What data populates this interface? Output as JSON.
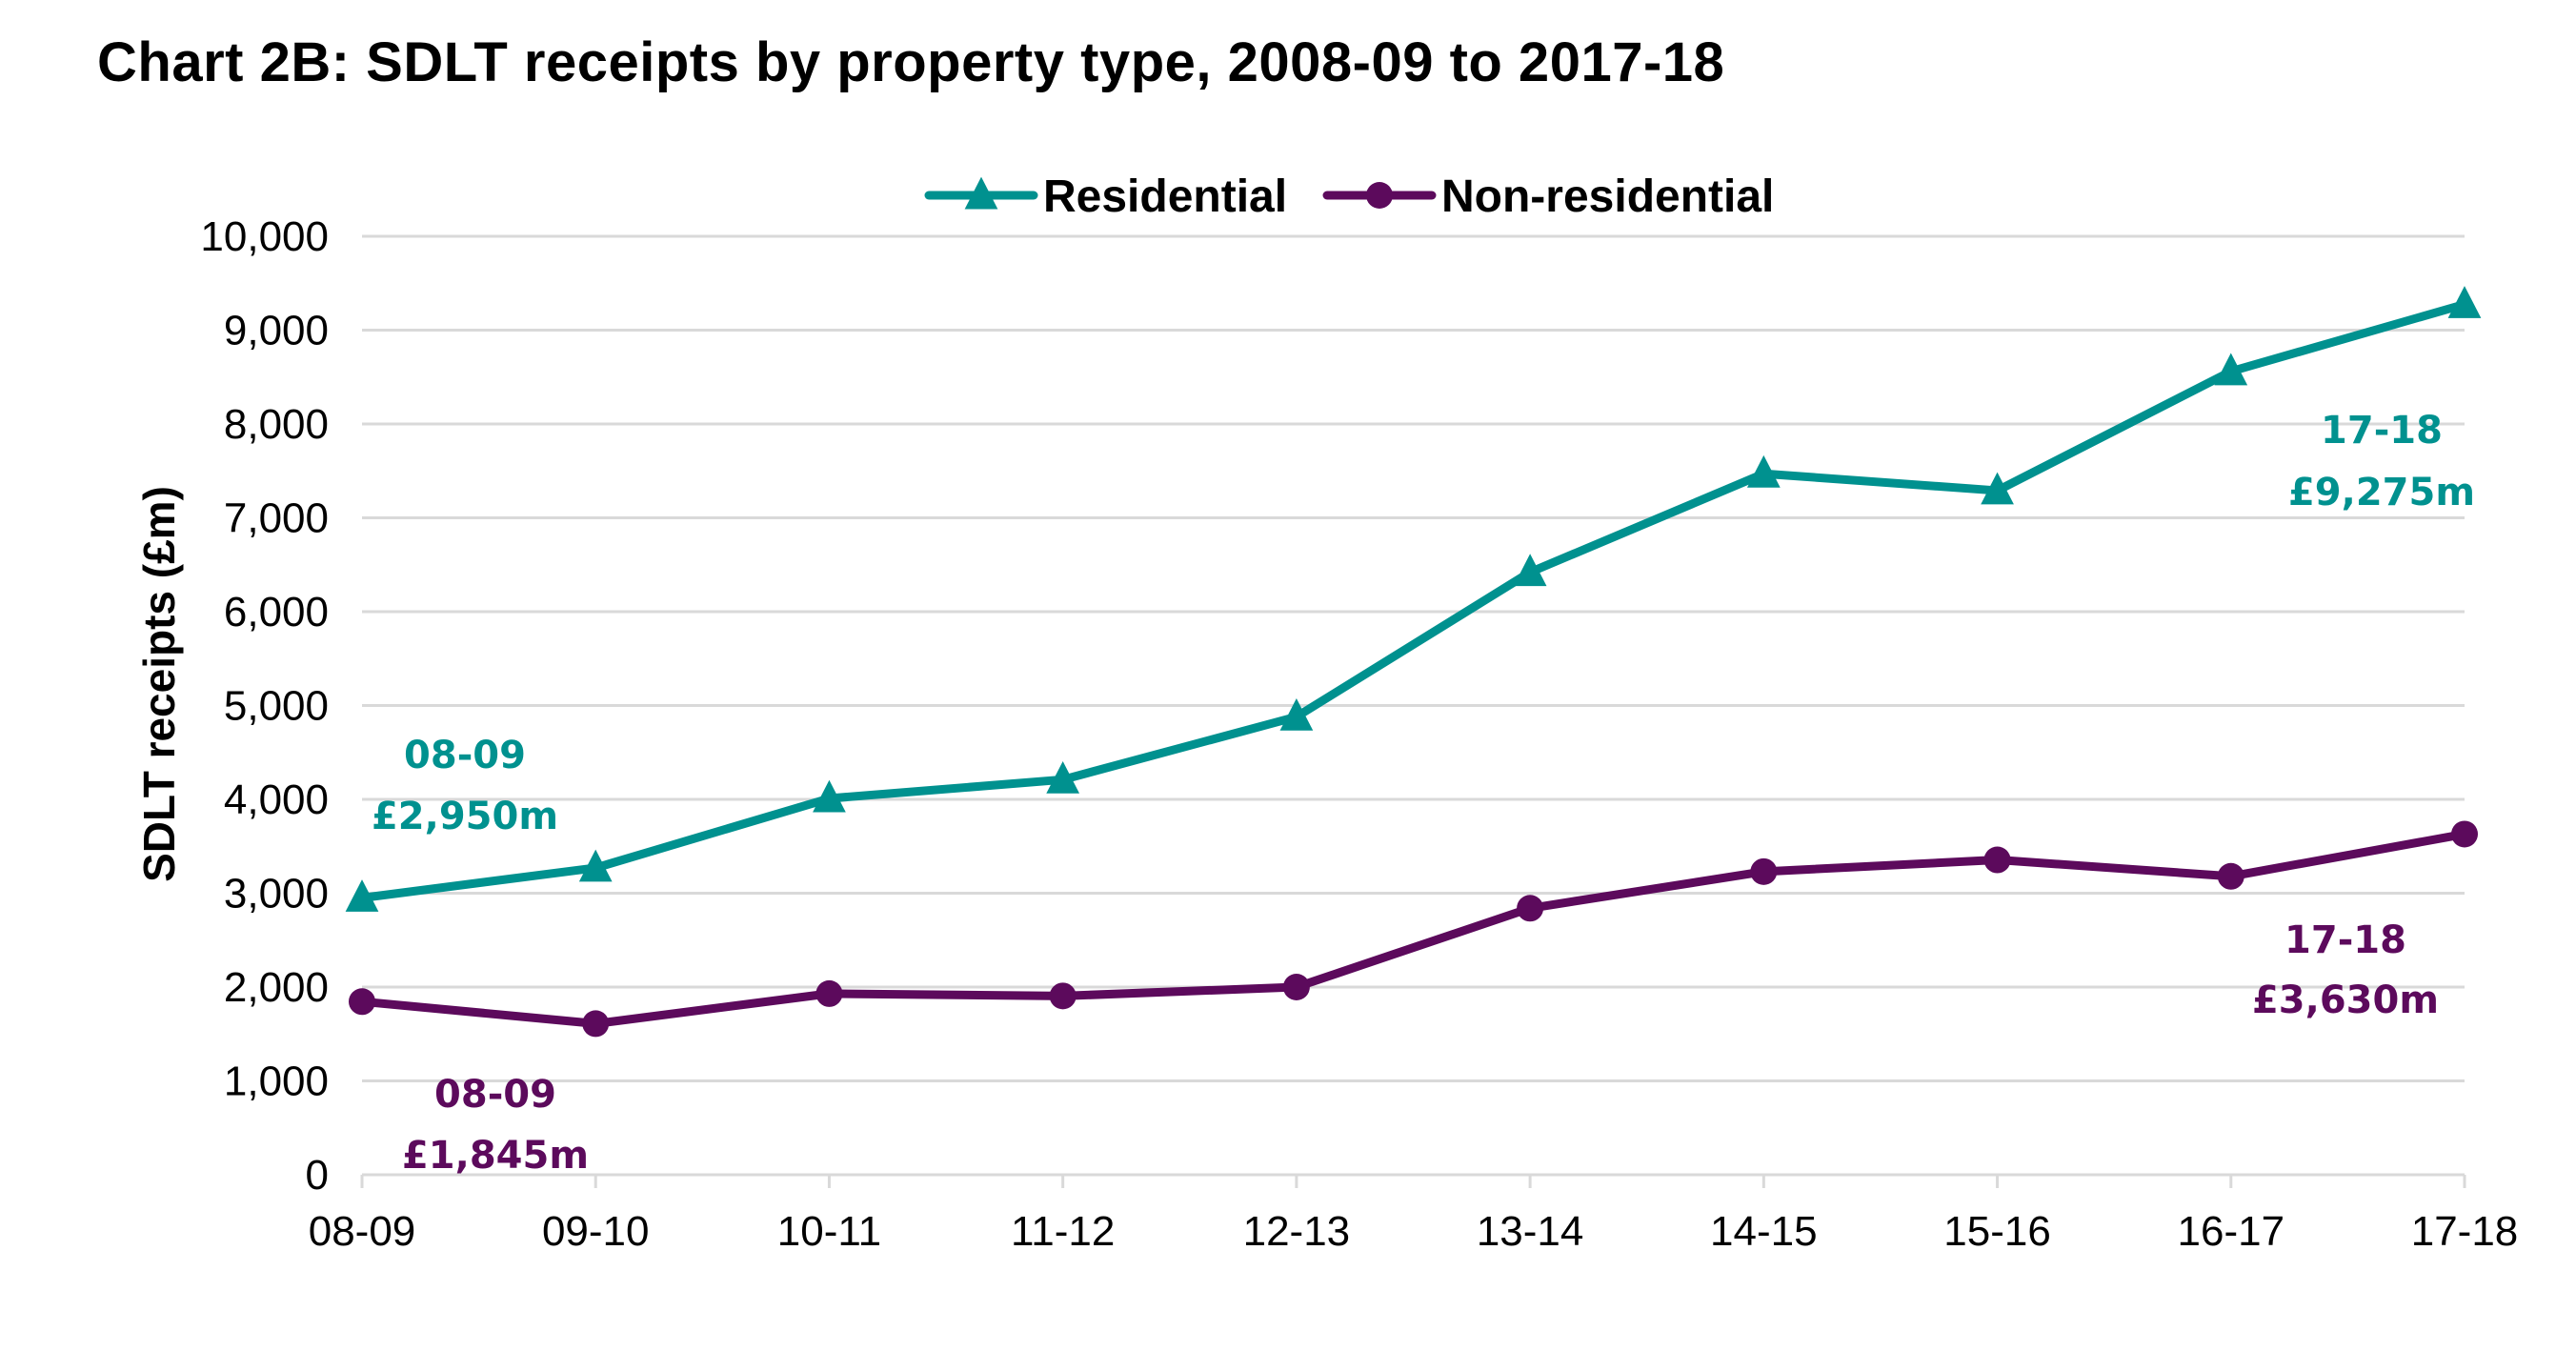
{
  "chart_data": {
    "type": "line",
    "title": "Chart 2B: SDLT receipts by property type, 2008-09 to 2017-18",
    "xlabel": "",
    "ylabel": "SDLT receipts (£m)",
    "ylim": [
      0,
      10000
    ],
    "yticks": [
      0,
      1000,
      2000,
      3000,
      4000,
      5000,
      6000,
      7000,
      8000,
      9000,
      10000
    ],
    "ytick_labels": [
      "0",
      "1,000",
      "2,000",
      "3,000",
      "4,000",
      "5,000",
      "6,000",
      "7,000",
      "8,000",
      "9,000",
      "10,000"
    ],
    "categories": [
      "08-09",
      "09-10",
      "10-11",
      "11-12",
      "12-13",
      "13-14",
      "14-15",
      "15-16",
      "16-17",
      "17-18"
    ],
    "grid": true,
    "legend_position": "top-center",
    "series": [
      {
        "name": "Residential",
        "color": "#00918f",
        "marker": "triangle",
        "values": [
          2950,
          3270,
          4010,
          4210,
          4880,
          6420,
          7470,
          7290,
          8560,
          9275
        ]
      },
      {
        "name": "Non-residential",
        "color": "#5c0a5c",
        "marker": "circle",
        "values": [
          1845,
          1610,
          1930,
          1905,
          2000,
          2840,
          3230,
          3355,
          3180,
          3630
        ]
      }
    ],
    "annotations": [
      {
        "series": "Residential",
        "point": "08-09",
        "line1": "08-09",
        "line2": "£2,950m"
      },
      {
        "series": "Residential",
        "point": "17-18",
        "line1": "17-18",
        "line2": "£9,275m"
      },
      {
        "series": "Non-residential",
        "point": "08-09",
        "line1": "08-09",
        "line2": "£1,845m"
      },
      {
        "series": "Non-residential",
        "point": "17-18",
        "line1": "17-18",
        "line2": "£3,630m"
      }
    ]
  }
}
